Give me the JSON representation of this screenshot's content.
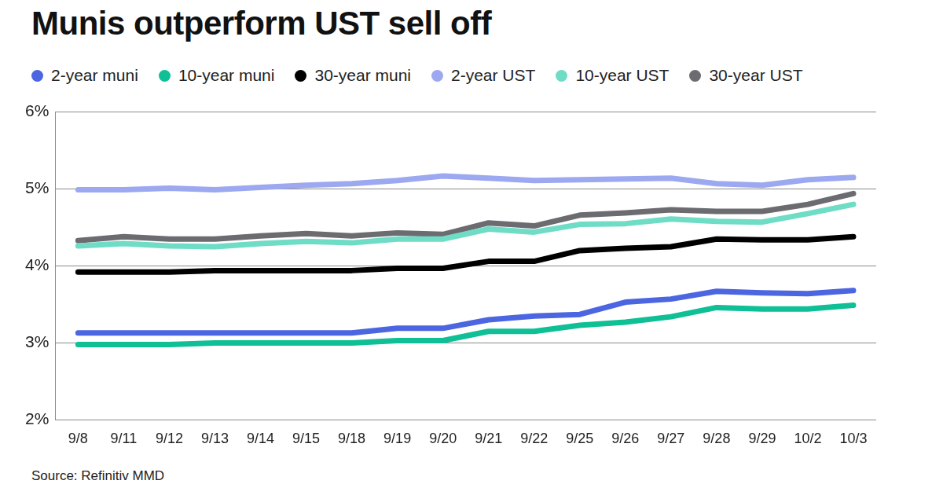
{
  "chart_data": {
    "type": "line",
    "title": "Munis outperform UST sell off",
    "source": "Source: Refinitiv MMD",
    "categories": [
      "9/8",
      "9/11",
      "9/12",
      "9/13",
      "9/14",
      "9/15",
      "9/18",
      "9/19",
      "9/20",
      "9/21",
      "9/22",
      "9/25",
      "9/26",
      "9/27",
      "9/28",
      "9/29",
      "10/2",
      "10/3"
    ],
    "series": [
      {
        "name": "2-year muni",
        "color": "#4b66e0",
        "values": [
          3.13,
          3.13,
          3.13,
          3.13,
          3.13,
          3.13,
          3.13,
          3.19,
          3.19,
          3.3,
          3.35,
          3.37,
          3.53,
          3.57,
          3.67,
          3.65,
          3.64,
          3.68
        ]
      },
      {
        "name": "10-year muni",
        "color": "#0fbf95",
        "values": [
          2.98,
          2.98,
          2.98,
          3.0,
          3.0,
          3.0,
          3.0,
          3.03,
          3.03,
          3.15,
          3.15,
          3.23,
          3.27,
          3.34,
          3.46,
          3.44,
          3.44,
          3.49
        ]
      },
      {
        "name": "30-year muni",
        "color": "#000000",
        "values": [
          3.92,
          3.92,
          3.92,
          3.94,
          3.94,
          3.94,
          3.94,
          3.97,
          3.97,
          4.06,
          4.06,
          4.2,
          4.23,
          4.25,
          4.35,
          4.34,
          4.34,
          4.38
        ]
      },
      {
        "name": "2-year UST",
        "color": "#9ca8f0",
        "values": [
          4.99,
          4.99,
          5.01,
          4.99,
          5.02,
          5.05,
          5.07,
          5.11,
          5.17,
          5.14,
          5.11,
          5.12,
          5.13,
          5.14,
          5.07,
          5.05,
          5.12,
          5.15
        ]
      },
      {
        "name": "10-year UST",
        "color": "#6fdcc6",
        "values": [
          4.26,
          4.29,
          4.26,
          4.25,
          4.29,
          4.32,
          4.3,
          4.35,
          4.35,
          4.48,
          4.44,
          4.54,
          4.55,
          4.61,
          4.58,
          4.57,
          4.68,
          4.8
        ]
      },
      {
        "name": "30-year UST",
        "color": "#6b6b70",
        "values": [
          4.33,
          4.38,
          4.35,
          4.35,
          4.39,
          4.42,
          4.39,
          4.43,
          4.41,
          4.56,
          4.52,
          4.66,
          4.69,
          4.73,
          4.71,
          4.71,
          4.8,
          4.94
        ]
      }
    ],
    "ylim": [
      2,
      6
    ],
    "yticks": [
      {
        "value": 2,
        "label": "2%"
      },
      {
        "value": 3,
        "label": "3%"
      },
      {
        "value": 4,
        "label": "4%"
      },
      {
        "value": 5,
        "label": "5%"
      },
      {
        "value": 6,
        "label": "6%"
      }
    ],
    "grid": true
  }
}
